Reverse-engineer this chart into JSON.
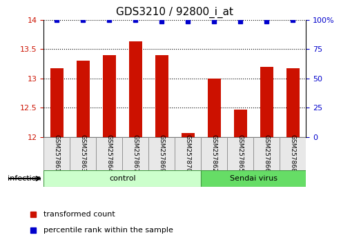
{
  "title": "GDS3210 / 92800_i_at",
  "samples": [
    "GSM257861",
    "GSM257863",
    "GSM257864",
    "GSM257867",
    "GSM257869",
    "GSM257870",
    "GSM257862",
    "GSM257865",
    "GSM257866",
    "GSM257868"
  ],
  "bar_values": [
    13.17,
    13.3,
    13.4,
    13.63,
    13.4,
    12.07,
    13.0,
    12.47,
    13.2,
    13.17
  ],
  "percentile_values": [
    100,
    100,
    100,
    100,
    99,
    99,
    99,
    99,
    99,
    100
  ],
  "bar_color": "#cc1100",
  "dot_color": "#0000cc",
  "ylim_left": [
    12,
    14
  ],
  "ylim_right": [
    0,
    100
  ],
  "yticks_left": [
    12,
    12.5,
    13,
    13.5,
    14
  ],
  "yticks_right": [
    0,
    25,
    50,
    75,
    100
  ],
  "groups": [
    {
      "label": "control",
      "count": 6,
      "color": "#ccffcc"
    },
    {
      "label": "Sendai virus",
      "count": 4,
      "color": "#66dd66"
    }
  ],
  "group_starts": [
    0,
    6
  ],
  "group_label": "infection",
  "legend_bar_label": "transformed count",
  "legend_dot_label": "percentile rank within the sample",
  "background_color": "#ffffff",
  "title_fontsize": 11
}
